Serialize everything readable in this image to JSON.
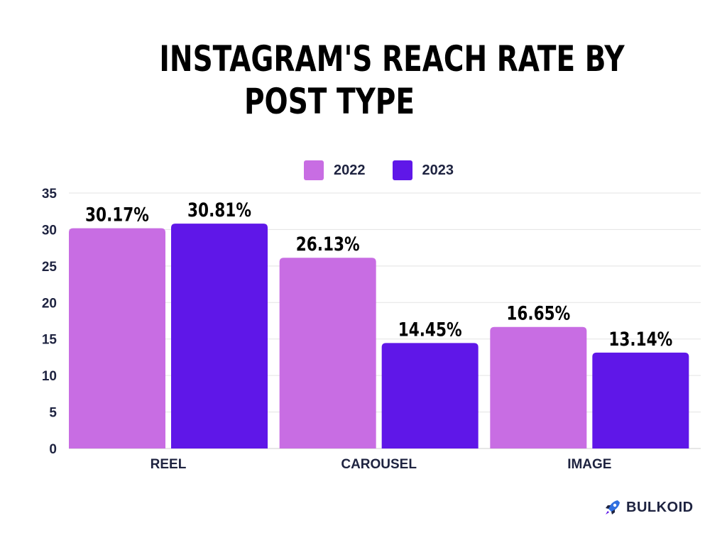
{
  "title": {
    "line1": "INSTAGRAM'S REACH RATE BY",
    "line2": "POST TYPE"
  },
  "brand": {
    "name": "BULKOID",
    "icon": "rocket-icon"
  },
  "colors": {
    "2022": "#c86de3",
    "2023": "#5f17e8",
    "grid": "#e3e3e3",
    "text": "#1e2340"
  },
  "chart_data": {
    "type": "bar",
    "categories": [
      "REEL",
      "CAROUSEL",
      "IMAGE"
    ],
    "series": [
      {
        "name": "2022",
        "values": [
          30.17,
          26.13,
          16.65
        ],
        "labels": [
          "30.17%",
          "26.13%",
          "16.65%"
        ]
      },
      {
        "name": "2023",
        "values": [
          30.81,
          14.45,
          13.14
        ],
        "labels": [
          "30.81%",
          "14.45%",
          "13.14%"
        ]
      }
    ],
    "yticks": [
      "0",
      "5",
      "10",
      "15",
      "20",
      "25",
      "30",
      "35"
    ],
    "ylim": [
      0,
      35
    ],
    "grid": true,
    "legend_position": "top-center"
  }
}
